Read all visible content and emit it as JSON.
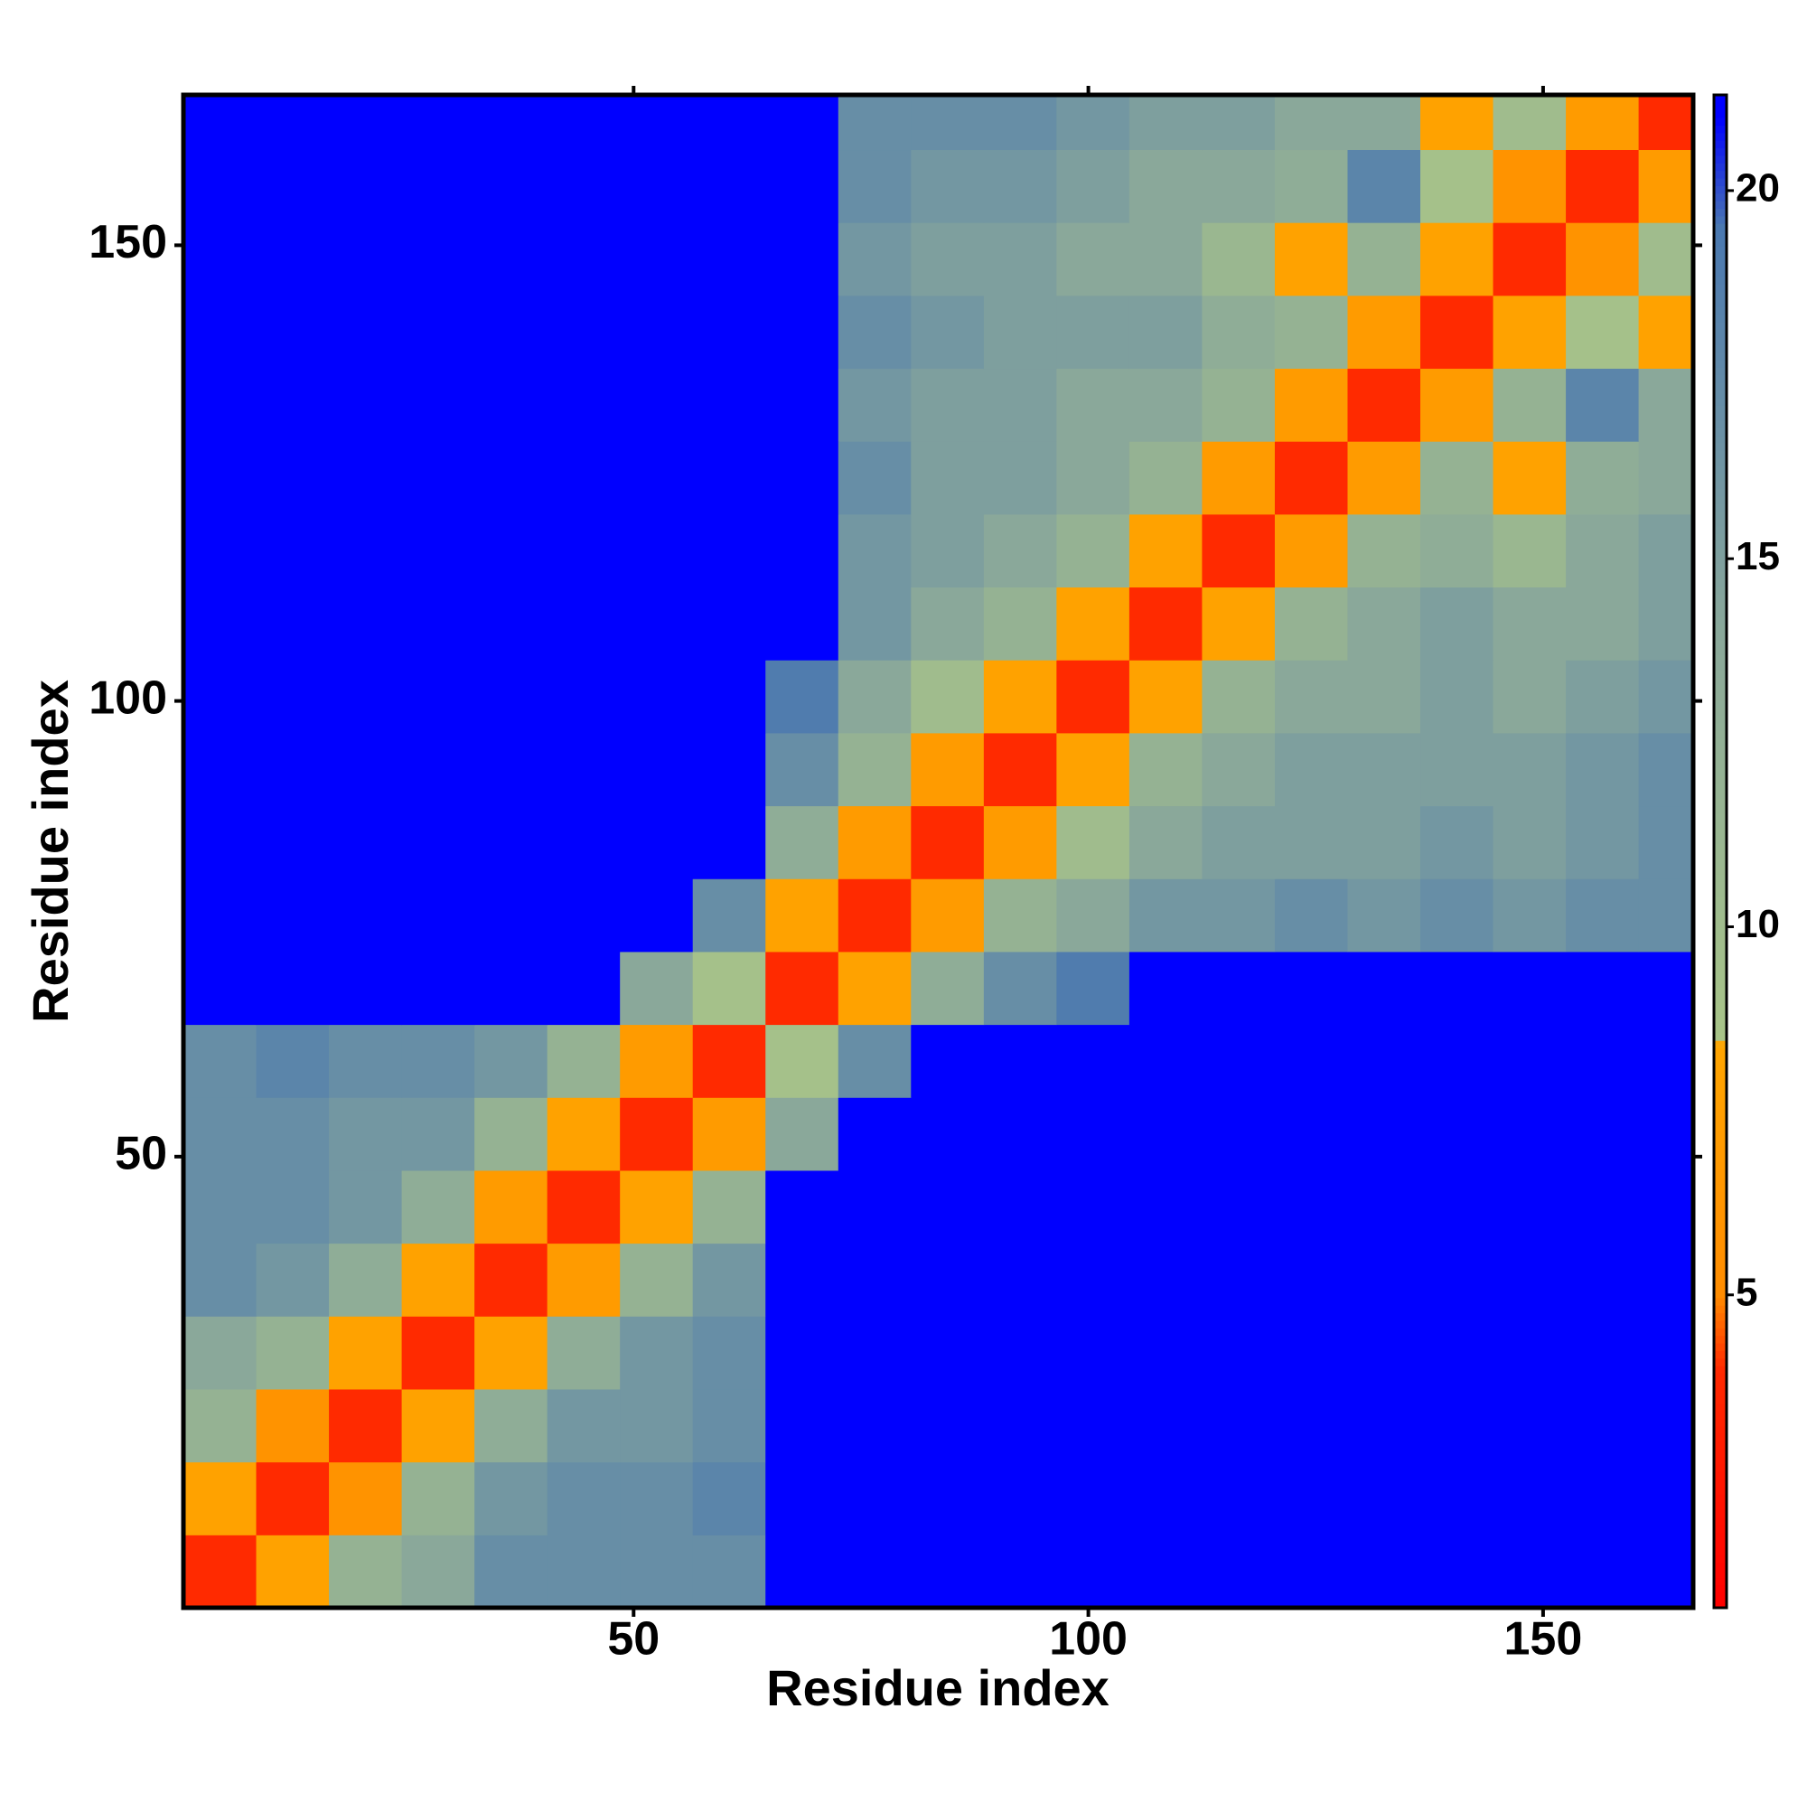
{
  "chart_data": {
    "type": "heatmap",
    "x_label": "Residue index",
    "y_label": "Residue index",
    "x_edges": [
      0.5,
      8.5,
      16.5,
      24.5,
      32.5,
      40.5,
      48.5,
      56.5,
      64.5,
      72.5,
      80.5,
      88.5,
      96.5,
      104.5,
      112.5,
      120.5,
      128.5,
      136.5,
      144.5,
      152.5,
      160.5,
      166.5
    ],
    "y_edges": [
      0.5,
      8.5,
      16.5,
      24.5,
      32.5,
      40.5,
      48.5,
      56.5,
      64.5,
      72.5,
      80.5,
      88.5,
      96.5,
      104.5,
      112.5,
      120.5,
      128.5,
      136.5,
      144.5,
      152.5,
      160.5,
      166.5
    ],
    "values": [
      [
        4,
        8,
        12,
        14,
        17,
        17,
        17,
        17,
        21,
        21,
        21,
        21,
        21,
        21,
        21,
        21,
        21,
        21,
        21,
        21,
        21
      ],
      [
        8,
        4,
        6,
        12,
        16,
        17,
        17,
        18,
        21,
        21,
        21,
        21,
        21,
        21,
        21,
        21,
        21,
        21,
        21,
        21,
        21
      ],
      [
        12,
        6,
        4,
        8,
        13,
        16,
        16,
        17,
        21,
        21,
        21,
        21,
        21,
        21,
        21,
        21,
        21,
        21,
        21,
        21,
        21
      ],
      [
        14,
        12,
        8,
        4,
        8,
        13,
        16,
        17,
        21,
        21,
        21,
        21,
        21,
        21,
        21,
        21,
        21,
        21,
        21,
        21,
        21
      ],
      [
        17,
        16,
        13,
        8,
        4,
        7,
        12,
        16,
        21,
        21,
        21,
        21,
        21,
        21,
        21,
        21,
        21,
        21,
        21,
        21,
        21
      ],
      [
        17,
        17,
        16,
        13,
        7,
        4,
        8,
        12,
        21,
        21,
        21,
        21,
        21,
        21,
        21,
        21,
        21,
        21,
        21,
        21,
        21
      ],
      [
        17,
        17,
        16,
        16,
        12,
        8,
        4,
        7,
        14,
        21,
        21,
        21,
        21,
        21,
        21,
        21,
        21,
        21,
        21,
        21,
        21
      ],
      [
        17,
        18,
        17,
        17,
        16,
        12,
        7,
        4,
        9,
        17,
        21,
        21,
        21,
        21,
        21,
        21,
        21,
        21,
        21,
        21,
        21
      ],
      [
        21,
        21,
        21,
        21,
        21,
        21,
        14,
        9,
        4,
        8,
        13,
        17,
        19,
        21,
        21,
        21,
        21,
        21,
        21,
        21,
        21
      ],
      [
        21,
        21,
        21,
        21,
        21,
        21,
        21,
        17,
        8,
        4,
        7,
        12,
        14,
        16,
        16,
        17,
        16,
        17,
        16,
        17,
        17
      ],
      [
        21,
        21,
        21,
        21,
        21,
        21,
        21,
        21,
        13,
        7,
        4,
        7,
        10,
        14,
        15,
        15,
        15,
        16,
        15,
        16,
        17
      ],
      [
        21,
        21,
        21,
        21,
        21,
        21,
        21,
        21,
        17,
        12,
        7,
        4,
        8,
        12,
        14,
        15,
        15,
        15,
        15,
        16,
        17
      ],
      [
        21,
        21,
        21,
        21,
        21,
        21,
        21,
        21,
        19,
        14,
        10,
        8,
        4,
        8,
        12,
        14,
        14,
        15,
        14,
        15,
        16
      ],
      [
        21,
        21,
        21,
        21,
        21,
        21,
        21,
        21,
        21,
        16,
        14,
        12,
        8,
        4,
        8,
        12,
        14,
        15,
        14,
        14,
        15
      ],
      [
        21,
        21,
        21,
        21,
        21,
        21,
        21,
        21,
        21,
        16,
        15,
        14,
        12,
        8,
        4,
        7,
        12,
        13,
        11,
        14,
        15
      ],
      [
        21,
        21,
        21,
        21,
        21,
        21,
        21,
        21,
        21,
        17,
        15,
        15,
        14,
        12,
        7,
        4,
        7,
        12,
        8,
        13,
        14
      ],
      [
        21,
        21,
        21,
        21,
        21,
        21,
        21,
        21,
        21,
        16,
        15,
        15,
        14,
        14,
        12,
        7,
        4,
        7,
        12,
        18,
        14
      ],
      [
        21,
        21,
        21,
        21,
        21,
        21,
        21,
        21,
        21,
        17,
        16,
        15,
        15,
        15,
        13,
        12,
        7,
        4,
        8,
        9,
        8
      ],
      [
        21,
        21,
        21,
        21,
        21,
        21,
        21,
        21,
        21,
        16,
        15,
        15,
        14,
        14,
        11,
        8,
        12,
        8,
        4,
        6,
        10
      ],
      [
        21,
        21,
        21,
        21,
        21,
        21,
        21,
        21,
        21,
        17,
        16,
        16,
        15,
        14,
        14,
        13,
        18,
        9,
        6,
        4,
        7
      ],
      [
        21,
        21,
        21,
        21,
        21,
        21,
        21,
        21,
        21,
        17,
        17,
        17,
        16,
        15,
        15,
        14,
        14,
        8,
        10,
        7,
        4
      ]
    ],
    "xlim": [
      0.5,
      166.5
    ],
    "ylim": [
      0.5,
      166.5
    ],
    "xticks": [
      50,
      100,
      150
    ],
    "yticks": [
      50,
      100,
      150
    ],
    "colorbar_lim": [
      0.75,
      21.3
    ],
    "colorbar_ticks": [
      5,
      10,
      15,
      20
    ],
    "colorscale": [
      [
        0.75,
        "#ff0000"
      ],
      [
        4,
        "#ff2a00"
      ],
      [
        5,
        "#ff8c00"
      ],
      [
        8.4,
        "#ffa500"
      ],
      [
        8.5,
        "#a8c488"
      ],
      [
        14,
        "#8aa89a"
      ],
      [
        19.5,
        "#4a78b0"
      ],
      [
        21,
        "#0000ff"
      ]
    ]
  }
}
